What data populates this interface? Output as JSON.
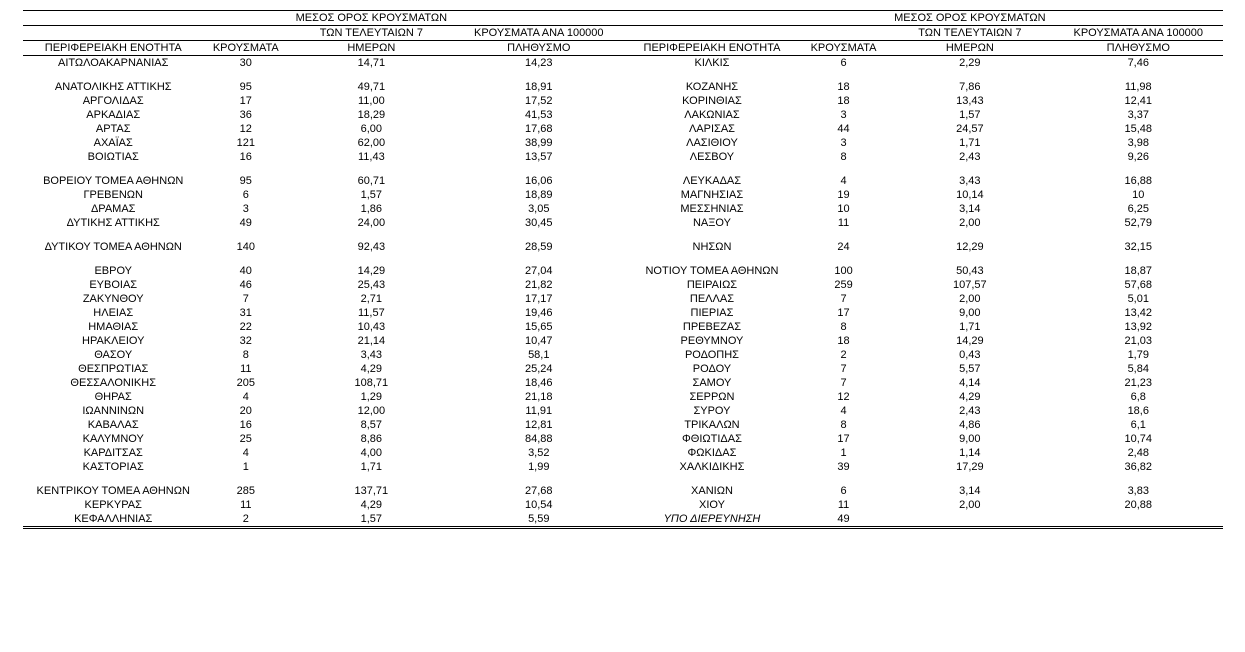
{
  "headers": {
    "region": "ΠΕΡΙΦΕΡΕΙΑΚΗ ΕΝΟΤΗΤΑ",
    "cases": "ΚΡΟΥΣΜΑΤΑ",
    "avg7_line1": "ΜΕΣΟΣ ΟΡΟΣ ΚΡΟΥΣΜΑΤΩΝ",
    "avg7_line2": "ΤΩΝ ΤΕΛΕΥΤΑΙΩΝ 7",
    "avg7_line3": "ΗΜΕΡΩΝ",
    "per100k_line1": "ΚΡΟΥΣΜΑΤΑ ΑΝΑ 100000",
    "per100k_line2": "ΠΛΗΘΥΣΜΟ"
  },
  "left": [
    {
      "region": "ΑΙΤΩΛΟΑΚΑΡΝΑΝΙΑΣ",
      "cases": "30",
      "avg": "14,71",
      "per": "14,23"
    },
    null,
    {
      "region": "ΑΝΑΤΟΛΙΚΗΣ ΑΤΤΙΚΗΣ",
      "cases": "95",
      "avg": "49,71",
      "per": "18,91"
    },
    {
      "region": "ΑΡΓΟΛΙΔΑΣ",
      "cases": "17",
      "avg": "11,00",
      "per": "17,52"
    },
    {
      "region": "ΑΡΚΑΔΙΑΣ",
      "cases": "36",
      "avg": "18,29",
      "per": "41,53"
    },
    {
      "region": "ΑΡΤΑΣ",
      "cases": "12",
      "avg": "6,00",
      "per": "17,68"
    },
    {
      "region": "ΑΧΑΪΑΣ",
      "cases": "121",
      "avg": "62,00",
      "per": "38,99"
    },
    {
      "region": "ΒΟΙΩΤΙΑΣ",
      "cases": "16",
      "avg": "11,43",
      "per": "13,57"
    },
    null,
    {
      "region": "ΒΟΡΕΙΟΥ ΤΟΜΕΑ ΑΘΗΝΩΝ",
      "cases": "95",
      "avg": "60,71",
      "per": "16,06"
    },
    {
      "region": "ΓΡΕΒΕΝΩΝ",
      "cases": "6",
      "avg": "1,57",
      "per": "18,89"
    },
    {
      "region": "ΔΡΑΜΑΣ",
      "cases": "3",
      "avg": "1,86",
      "per": "3,05"
    },
    {
      "region": "ΔΥΤΙΚΗΣ ΑΤΤΙΚΗΣ",
      "cases": "49",
      "avg": "24,00",
      "per": "30,45"
    },
    null,
    {
      "region": "ΔΥΤΙΚΟΥ ΤΟΜΕΑ ΑΘΗΝΩΝ",
      "cases": "140",
      "avg": "92,43",
      "per": "28,59"
    },
    null,
    {
      "region": "ΕΒΡΟΥ",
      "cases": "40",
      "avg": "14,29",
      "per": "27,04"
    },
    {
      "region": "ΕΥΒΟΙΑΣ",
      "cases": "46",
      "avg": "25,43",
      "per": "21,82"
    },
    {
      "region": "ΖΑΚΥΝΘΟΥ",
      "cases": "7",
      "avg": "2,71",
      "per": "17,17"
    },
    {
      "region": "ΗΛΕΙΑΣ",
      "cases": "31",
      "avg": "11,57",
      "per": "19,46"
    },
    {
      "region": "ΗΜΑΘΙΑΣ",
      "cases": "22",
      "avg": "10,43",
      "per": "15,65"
    },
    {
      "region": "ΗΡΑΚΛΕΙΟΥ",
      "cases": "32",
      "avg": "21,14",
      "per": "10,47"
    },
    {
      "region": "ΘΑΣΟΥ",
      "cases": "8",
      "avg": "3,43",
      "per": "58,1"
    },
    {
      "region": "ΘΕΣΠΡΩΤΙΑΣ",
      "cases": "11",
      "avg": "4,29",
      "per": "25,24"
    },
    {
      "region": "ΘΕΣΣΑΛΟΝΙΚΗΣ",
      "cases": "205",
      "avg": "108,71",
      "per": "18,46"
    },
    {
      "region": "ΘΗΡΑΣ",
      "cases": "4",
      "avg": "1,29",
      "per": "21,18"
    },
    {
      "region": "ΙΩΑΝΝΙΝΩΝ",
      "cases": "20",
      "avg": "12,00",
      "per": "11,91"
    },
    {
      "region": "ΚΑΒΑΛΑΣ",
      "cases": "16",
      "avg": "8,57",
      "per": "12,81"
    },
    {
      "region": "ΚΑΛΥΜΝΟΥ",
      "cases": "25",
      "avg": "8,86",
      "per": "84,88"
    },
    {
      "region": "ΚΑΡΔΙΤΣΑΣ",
      "cases": "4",
      "avg": "4,00",
      "per": "3,52"
    },
    {
      "region": "ΚΑΣΤΟΡΙΑΣ",
      "cases": "1",
      "avg": "1,71",
      "per": "1,99"
    },
    null,
    {
      "region": "ΚΕΝΤΡΙΚΟΥ ΤΟΜΕΑ ΑΘΗΝΩΝ",
      "cases": "285",
      "avg": "137,71",
      "per": "27,68"
    },
    {
      "region": "ΚΕΡΚΥΡΑΣ",
      "cases": "11",
      "avg": "4,29",
      "per": "10,54"
    },
    {
      "region": "ΚΕΦΑΛΛΗΝΙΑΣ",
      "cases": "2",
      "avg": "1,57",
      "per": "5,59"
    }
  ],
  "right": [
    {
      "region": "ΚΙΛΚΙΣ",
      "cases": "6",
      "avg": "2,29",
      "per": "7,46"
    },
    null,
    {
      "region": "ΚΟΖΑΝΗΣ",
      "cases": "18",
      "avg": "7,86",
      "per": "11,98"
    },
    {
      "region": "ΚΟΡΙΝΘΙΑΣ",
      "cases": "18",
      "avg": "13,43",
      "per": "12,41"
    },
    {
      "region": "ΛΑΚΩΝΙΑΣ",
      "cases": "3",
      "avg": "1,57",
      "per": "3,37"
    },
    {
      "region": "ΛΑΡΙΣΑΣ",
      "cases": "44",
      "avg": "24,57",
      "per": "15,48"
    },
    {
      "region": "ΛΑΣΙΘΙΟΥ",
      "cases": "3",
      "avg": "1,71",
      "per": "3,98"
    },
    {
      "region": "ΛΕΣΒΟΥ",
      "cases": "8",
      "avg": "2,43",
      "per": "9,26"
    },
    null,
    {
      "region": "ΛΕΥΚΑΔΑΣ",
      "cases": "4",
      "avg": "3,43",
      "per": "16,88"
    },
    {
      "region": "ΜΑΓΝΗΣΙΑΣ",
      "cases": "19",
      "avg": "10,14",
      "per": "10"
    },
    {
      "region": "ΜΕΣΣΗΝΙΑΣ",
      "cases": "10",
      "avg": "3,14",
      "per": "6,25"
    },
    {
      "region": "ΝΑΞΟΥ",
      "cases": "11",
      "avg": "2,00",
      "per": "52,79"
    },
    null,
    {
      "region": "ΝΗΣΩΝ",
      "cases": "24",
      "avg": "12,29",
      "per": "32,15"
    },
    null,
    {
      "region": "ΝΟΤΙΟΥ ΤΟΜΕΑ ΑΘΗΝΩΝ",
      "cases": "100",
      "avg": "50,43",
      "per": "18,87"
    },
    {
      "region": "ΠΕΙΡΑΙΩΣ",
      "cases": "259",
      "avg": "107,57",
      "per": "57,68"
    },
    {
      "region": "ΠΕΛΛΑΣ",
      "cases": "7",
      "avg": "2,00",
      "per": "5,01"
    },
    {
      "region": "ΠΙΕΡΙΑΣ",
      "cases": "17",
      "avg": "9,00",
      "per": "13,42"
    },
    {
      "region": "ΠΡΕΒΕΖΑΣ",
      "cases": "8",
      "avg": "1,71",
      "per": "13,92"
    },
    {
      "region": "ΡΕΘΥΜΝΟΥ",
      "cases": "18",
      "avg": "14,29",
      "per": "21,03"
    },
    {
      "region": "ΡΟΔΟΠΗΣ",
      "cases": "2",
      "avg": "0,43",
      "per": "1,79"
    },
    {
      "region": "ΡΟΔΟΥ",
      "cases": "7",
      "avg": "5,57",
      "per": "5,84"
    },
    {
      "region": "ΣΑΜΟΥ",
      "cases": "7",
      "avg": "4,14",
      "per": "21,23"
    },
    {
      "region": "ΣΕΡΡΩΝ",
      "cases": "12",
      "avg": "4,29",
      "per": "6,8"
    },
    {
      "region": "ΣΥΡΟΥ",
      "cases": "4",
      "avg": "2,43",
      "per": "18,6"
    },
    {
      "region": "ΤΡΙΚΑΛΩΝ",
      "cases": "8",
      "avg": "4,86",
      "per": "6,1"
    },
    {
      "region": "ΦΘΙΩΤΙΔΑΣ",
      "cases": "17",
      "avg": "9,00",
      "per": "10,74"
    },
    {
      "region": "ΦΩΚΙΔΑΣ",
      "cases": "1",
      "avg": "1,14",
      "per": "2,48"
    },
    {
      "region": "ΧΑΛΚΙΔΙΚΗΣ",
      "cases": "39",
      "avg": "17,29",
      "per": "36,82"
    },
    null,
    {
      "region": "ΧΑΝΙΩΝ",
      "cases": "6",
      "avg": "3,14",
      "per": "3,83"
    },
    {
      "region": "ΧΙΟΥ",
      "cases": "11",
      "avg": "2,00",
      "per": "20,88"
    },
    {
      "region": "ΥΠΟ ΔΙΕΡΕΥΝΗΣΗ",
      "cases": "49",
      "avg": "",
      "per": "",
      "italic": true
    }
  ]
}
